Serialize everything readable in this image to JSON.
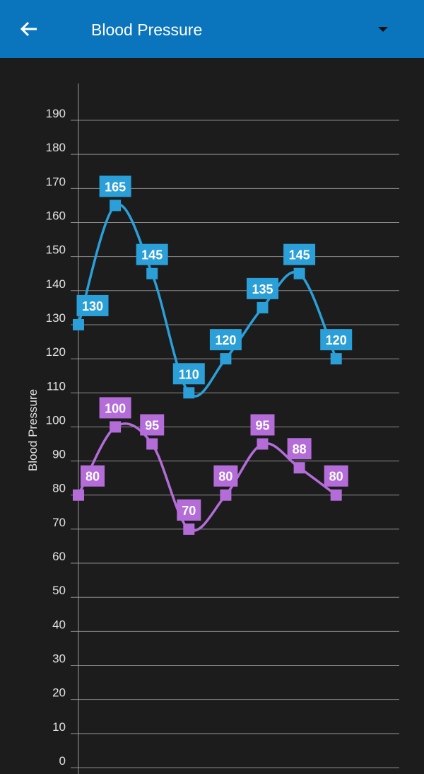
{
  "header": {
    "title": "Blood Pressure",
    "back_icon": "arrow-left-icon",
    "menu_icon": "dropdown-caret-icon",
    "color": "#0a74bc"
  },
  "chart_data": {
    "type": "line",
    "ylabel": "Blood Pressure",
    "ylim": [
      0,
      190
    ],
    "yticks": [
      0,
      10,
      20,
      30,
      40,
      50,
      60,
      70,
      80,
      90,
      100,
      110,
      120,
      130,
      140,
      150,
      160,
      170,
      180,
      190
    ],
    "grid": true,
    "smooth": true,
    "series": [
      {
        "color": "#2a9fd8",
        "values": [
          130,
          165,
          145,
          110,
          120,
          135,
          145,
          120
        ]
      },
      {
        "color": "#b46cd8",
        "values": [
          80,
          100,
          95,
          70,
          80,
          95,
          88,
          80
        ]
      }
    ]
  }
}
